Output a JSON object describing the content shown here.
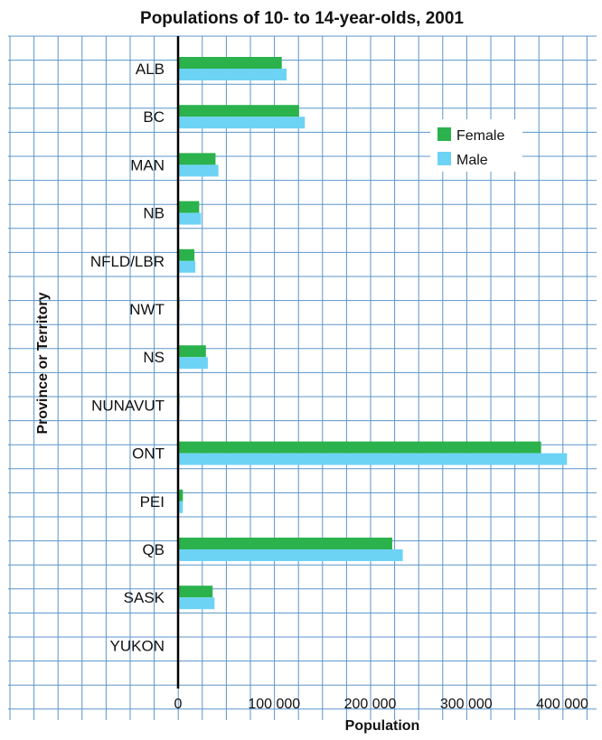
{
  "chart_data": {
    "type": "bar",
    "orientation": "horizontal",
    "title": "Populations of 10- to 14-year-olds, 2001",
    "xlabel": "Population",
    "ylabel": "Province or Territory",
    "categories": [
      "ALB",
      "BC",
      "MAN",
      "NB",
      "NFLD/LBR",
      "NWT",
      "NS",
      "NUNAVUT",
      "ONT",
      "PEI",
      "QB",
      "SASK",
      "YUKON"
    ],
    "series": [
      {
        "name": "Female",
        "color": "#2bb24c",
        "values": [
          108000,
          126000,
          39000,
          22000,
          17000,
          1500,
          29000,
          1500,
          378000,
          5000,
          223000,
          36000,
          1000
        ]
      },
      {
        "name": "Male",
        "color": "#6dd3f5",
        "values": [
          113000,
          132000,
          42000,
          24000,
          18000,
          1500,
          31000,
          1500,
          405000,
          5000,
          234000,
          38000,
          1000
        ]
      }
    ],
    "xlim": [
      0,
      440000
    ],
    "xticks": [
      0,
      100000,
      200000,
      300000,
      400000
    ],
    "xtick_labels": [
      "0",
      "100 000",
      "200 000",
      "300 000",
      "400 000"
    ],
    "grid": true,
    "legend_position": "top-right"
  }
}
